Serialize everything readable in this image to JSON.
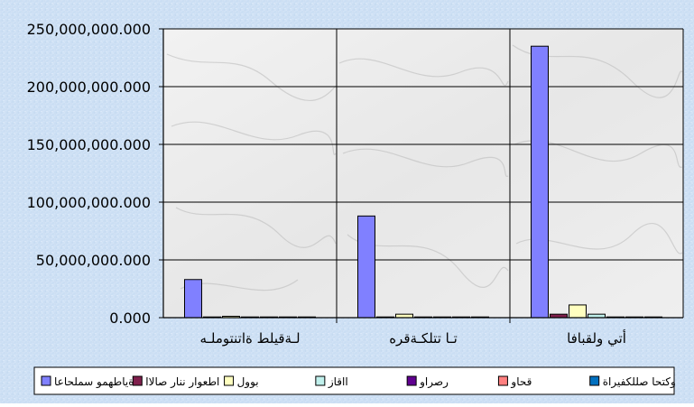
{
  "chart_data": {
    "type": "bar",
    "title": "",
    "xlabel": "",
    "ylabel": "",
    "ylim": [
      0,
      250000000
    ],
    "yticks": [
      0,
      50000000,
      100000000,
      150000000,
      200000000,
      250000000
    ],
    "ytick_labels": [
      "0.000",
      "50,000,000.000",
      "100,000,000.000",
      "150,000,000.000",
      "200,000,000.000",
      "250,000,000.000"
    ],
    "categories": [
      "لـةقيلط ةاتنتوملـه",
      "تـا تتلكـةقره",
      "أتي ولقبافا"
    ],
    "grid": true,
    "legend_position": "bottom",
    "series": [
      {
        "name": "ةياطهمو سملحاعا",
        "color": "#8080ff",
        "values": [
          33000000,
          88000000,
          235000000
        ]
      },
      {
        "name": "اطعوار ننار صالاا",
        "color": "#7f1f4c",
        "values": [
          300000,
          400000,
          3000000
        ]
      },
      {
        "name": "بوول",
        "color": "#ffffc0",
        "values": [
          1200000,
          3000000,
          11000000
        ]
      },
      {
        "name": "ااقاز",
        "color": "#c0f0ec",
        "values": [
          200000,
          300000,
          3000000
        ]
      },
      {
        "name": "رصراو",
        "color": "#600090",
        "values": [
          100000,
          100000,
          300000
        ]
      },
      {
        "name": "قحاو",
        "color": "#ff8080",
        "values": [
          50000,
          50000,
          100000
        ]
      },
      {
        "name": "وكتحا صللكفيراة",
        "color": "#0070c0",
        "values": [
          50000,
          50000,
          100000
        ]
      }
    ]
  }
}
